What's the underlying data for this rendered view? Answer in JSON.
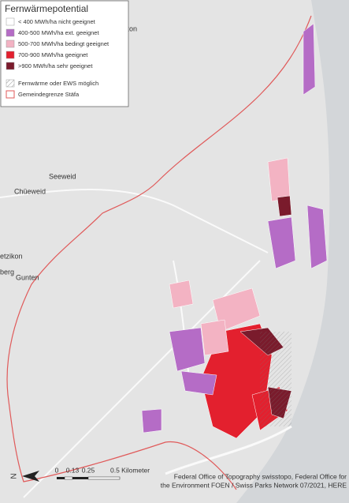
{
  "legend": {
    "title": "Fernwärmepotential",
    "items": [
      {
        "label": "< 400 MWh/ha nicht geeignet",
        "color": "#ffffff"
      },
      {
        "label": "400-500 MWh/ha ext. geeignet",
        "color": "#b56cc6"
      },
      {
        "label": "500-700 MWh/ha bedingt geeignet",
        "color": "#f3b3c3"
      },
      {
        "label": "700-900 MWh/ha geeignet",
        "color": "#e3202e"
      },
      {
        "label": ">900 MWh/ha sehr geeignet",
        "color": "#7a1b2c"
      },
      {
        "label": "Fernwärme oder EWS möglich",
        "color": "#9a9a9a"
      },
      {
        "label": "Gemeindegrenze Stäfa",
        "color": "#e05a5a"
      }
    ]
  },
  "places": [
    "etikon",
    "Seeweid",
    "Chüeweid",
    "etzikon",
    "berg",
    "Gunten"
  ],
  "north": "N",
  "scale": [
    "0",
    "0.13",
    "0.25",
    "0.5 Kilometer"
  ],
  "attribution": [
    "Federal Office of Topography swisstopo, Federal Office for",
    "the Environment FOEN / Swiss Parks Network 07/2021, HERE"
  ]
}
